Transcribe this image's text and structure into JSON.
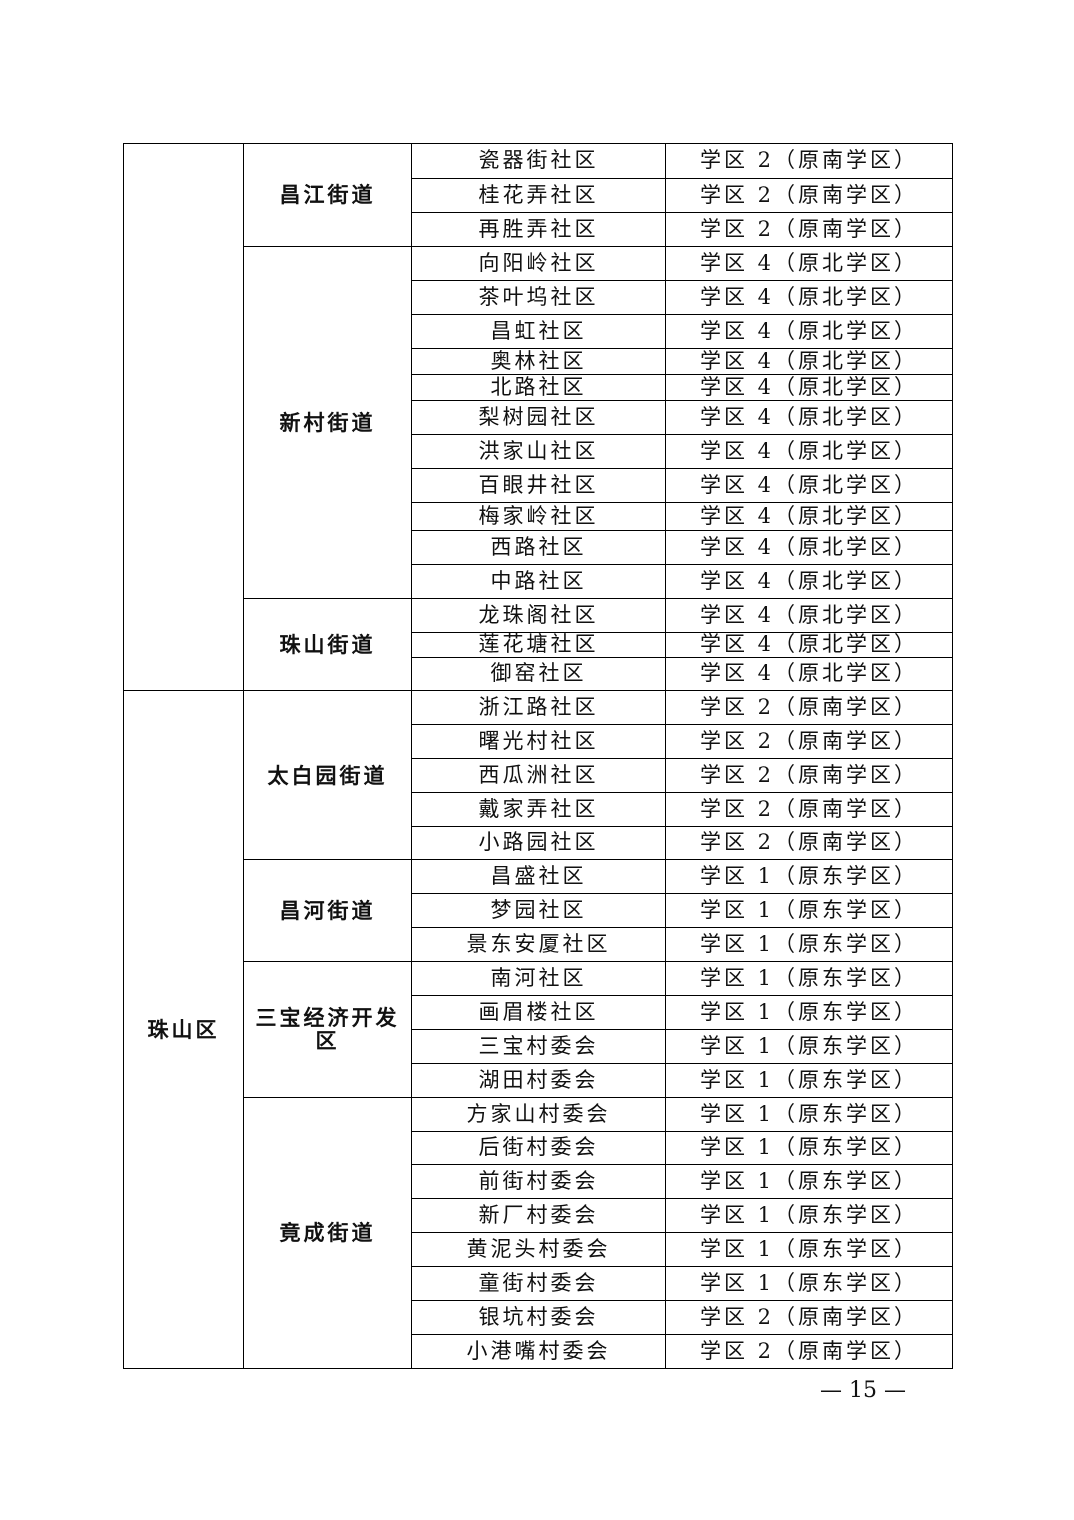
{
  "sections": [
    {
      "district": null,
      "streets": [
        {
          "name": "昌江街道",
          "communities": [
            {
              "name": "瓷器街社区",
              "zone": "学区 2（原南学区）"
            },
            {
              "name": "桂花弄社区",
              "zone": "学区 2（原南学区）"
            },
            {
              "name": "再胜弄社区",
              "zone": "学区 2（原南学区）"
            }
          ]
        },
        {
          "name": "新村街道",
          "communities": [
            {
              "name": "向阳岭社区",
              "zone": "学区 4（原北学区）"
            },
            {
              "name": "茶叶坞社区",
              "zone": "学区 4（原北学区）"
            },
            {
              "name": "昌虹社区",
              "zone": "学区 4（原北学区）"
            },
            {
              "name": "奥林社区",
              "zone": "学区 4（原北学区）"
            },
            {
              "name": "北路社区",
              "zone": "学区 4（原北学区）"
            },
            {
              "name": "梨树园社区",
              "zone": "学区 4（原北学区）"
            },
            {
              "name": "洪家山社区",
              "zone": "学区 4（原北学区）"
            },
            {
              "name": "百眼井社区",
              "zone": "学区 4（原北学区）"
            },
            {
              "name": "梅家岭社区",
              "zone": "学区 4（原北学区）"
            },
            {
              "name": "西路社区",
              "zone": "学区 4（原北学区）"
            },
            {
              "name": "中路社区",
              "zone": "学区 4（原北学区）"
            }
          ]
        },
        {
          "name": "珠山街道",
          "communities": [
            {
              "name": "龙珠阁社区",
              "zone": "学区 4（原北学区）"
            },
            {
              "name": "莲花塘社区",
              "zone": "学区 4（原北学区）"
            },
            {
              "name": "御窑社区",
              "zone": "学区 4（原北学区）"
            }
          ]
        }
      ]
    },
    {
      "district": "珠山区",
      "streets": [
        {
          "name": "太白园街道",
          "communities": [
            {
              "name": "浙江路社区",
              "zone": "学区 2（原南学区）"
            },
            {
              "name": "曙光村社区",
              "zone": "学区 2（原南学区）"
            },
            {
              "name": "西瓜洲社区",
              "zone": "学区 2（原南学区）"
            },
            {
              "name": "戴家弄社区",
              "zone": "学区 2（原南学区）"
            },
            {
              "name": "小路园社区",
              "zone": "学区 2（原南学区）"
            }
          ]
        },
        {
          "name": "昌河街道",
          "communities": [
            {
              "name": "昌盛社区",
              "zone": "学区 1（原东学区）"
            },
            {
              "name": "梦园社区",
              "zone": "学区 1（原东学区）"
            },
            {
              "name": "景东安厦社区",
              "zone": "学区 1（原东学区）"
            }
          ]
        },
        {
          "name": "三宝经济开发区",
          "communities": [
            {
              "name": "南河社区",
              "zone": "学区 1（原东学区）"
            },
            {
              "name": "画眉楼社区",
              "zone": "学区 1（原东学区）"
            },
            {
              "name": "三宝村委会",
              "zone": "学区 1（原东学区）"
            },
            {
              "name": "湖田村委会",
              "zone": "学区 1（原东学区）"
            }
          ]
        },
        {
          "name": "竟成街道",
          "communities": [
            {
              "name": "方家山村委会",
              "zone": "学区 1（原东学区）"
            },
            {
              "name": "后街村委会",
              "zone": "学区 1（原东学区）"
            },
            {
              "name": "前街村委会",
              "zone": "学区 1（原东学区）"
            },
            {
              "name": "新厂村委会",
              "zone": "学区 1（原东学区）"
            },
            {
              "name": "黄泥头村委会",
              "zone": "学区 1（原东学区）"
            },
            {
              "name": "童街村委会",
              "zone": "学区 1（原东学区）"
            },
            {
              "name": "银坑村委会",
              "zone": "学区 2（原南学区）"
            },
            {
              "name": "小港嘴村委会",
              "zone": "学区 2（原南学区）"
            }
          ]
        }
      ]
    }
  ],
  "page_number": "— 15 —"
}
